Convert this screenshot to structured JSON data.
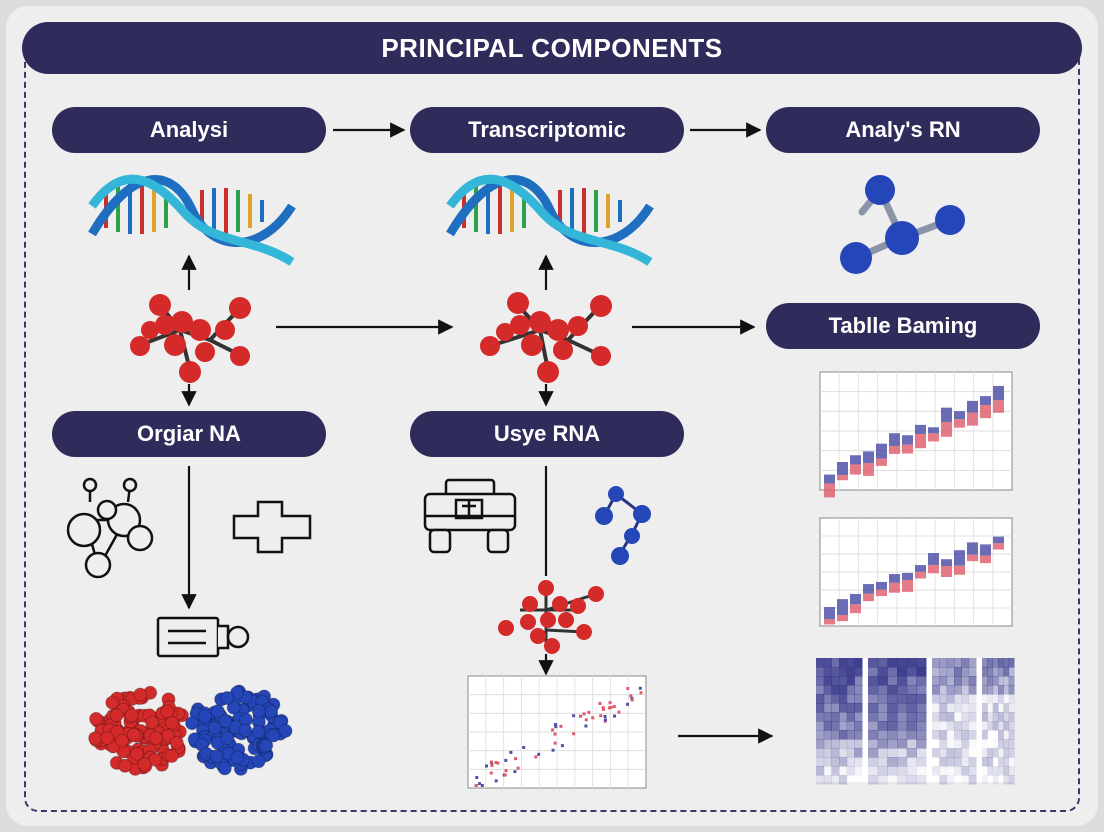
{
  "banner": {
    "title": "PRINCIPAL COMPONENTS"
  },
  "nodes": {
    "analysi": "Analysi",
    "transcriptomic": "Transcriptomic",
    "analys_rn": "Analy's RN",
    "orgiar_na": "Orgiar NA",
    "usye_rna": "Usye RNA",
    "tablle_baming": "Tablle Baming"
  },
  "colors": {
    "pill": "#2f2c5c",
    "atom_red": "#d42a2a",
    "atom_blue": "#2446b8",
    "dna_blue": "#1e6fc0",
    "chart_red": "#e05a6a",
    "chart_blue": "#5052a8"
  },
  "icons": [
    "dna-helix-icon",
    "molecule-red-icon",
    "molecule-blue-icon",
    "network-outline-icon",
    "plus-outline-icon",
    "robot-outline-icon",
    "plug-outline-icon",
    "protein-cluster-icon"
  ]
}
